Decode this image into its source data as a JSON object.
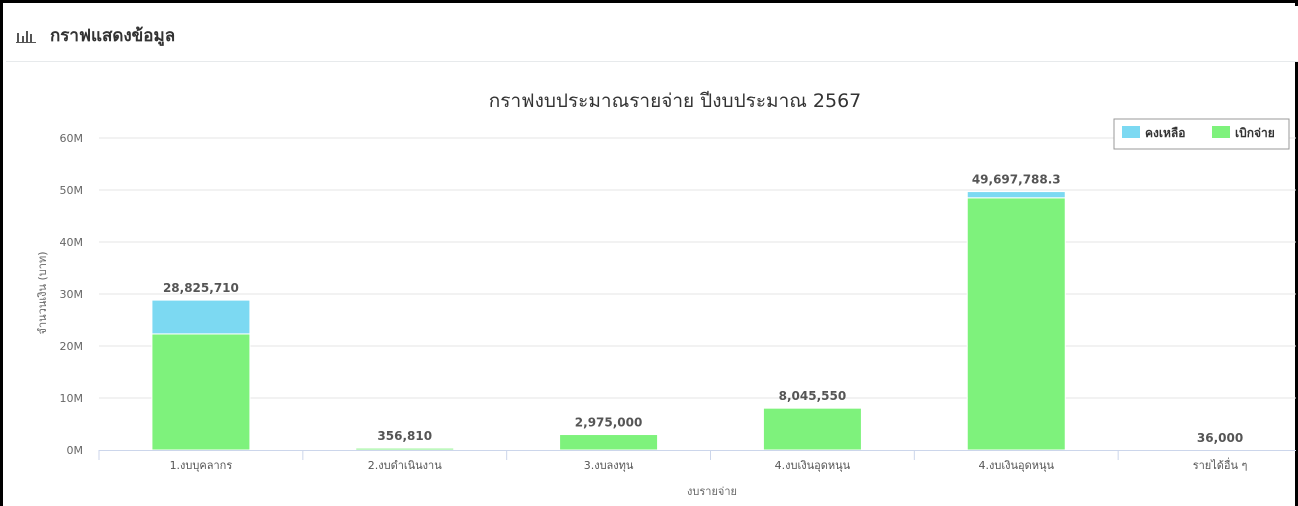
{
  "panel": {
    "title": "กราฟแสดงข้อมูล",
    "icon": "bar-chart-icon"
  },
  "chart_data": {
    "type": "bar",
    "stacked": true,
    "title": "กราฟงบประมาณรายจ่าย ปีงบประมาณ 2567",
    "xlabel": "งบรายจ่าย",
    "ylabel": "จำนวนเงิน (บาท)",
    "ylim": [
      0,
      60000000
    ],
    "yticks": [
      0,
      10000000,
      20000000,
      30000000,
      40000000,
      50000000,
      60000000
    ],
    "ytick_labels": [
      "0M",
      "10M",
      "20M",
      "30M",
      "40M",
      "50M",
      "60M"
    ],
    "grid": true,
    "legend_position": "top-right",
    "categories": [
      "1.งบบุคลากร",
      "2.งบดำเนินงาน",
      "3.งบลงทุน",
      "4.งบเงินอุดหนุน",
      "4.งบเงินอุดหนุน",
      "รายได้อื่น ๆ"
    ],
    "series": [
      {
        "name": "คงเหลือ",
        "color": "#7cd9f2",
        "values": [
          6500000,
          0,
          0,
          0,
          1200000,
          0
        ]
      },
      {
        "name": "เบิกจ่าย",
        "color": "#7ef27c",
        "values": [
          22325710,
          356810,
          2975000,
          8045550,
          48497788.3,
          36000
        ]
      }
    ],
    "totals": [
      28825710,
      356810,
      2975000,
      8045550,
      49697788.3,
      36000
    ],
    "total_labels": [
      "28,825,710",
      "356,810",
      "2,975,000",
      "8,045,550",
      "49,697,788.3",
      "36,000"
    ]
  }
}
